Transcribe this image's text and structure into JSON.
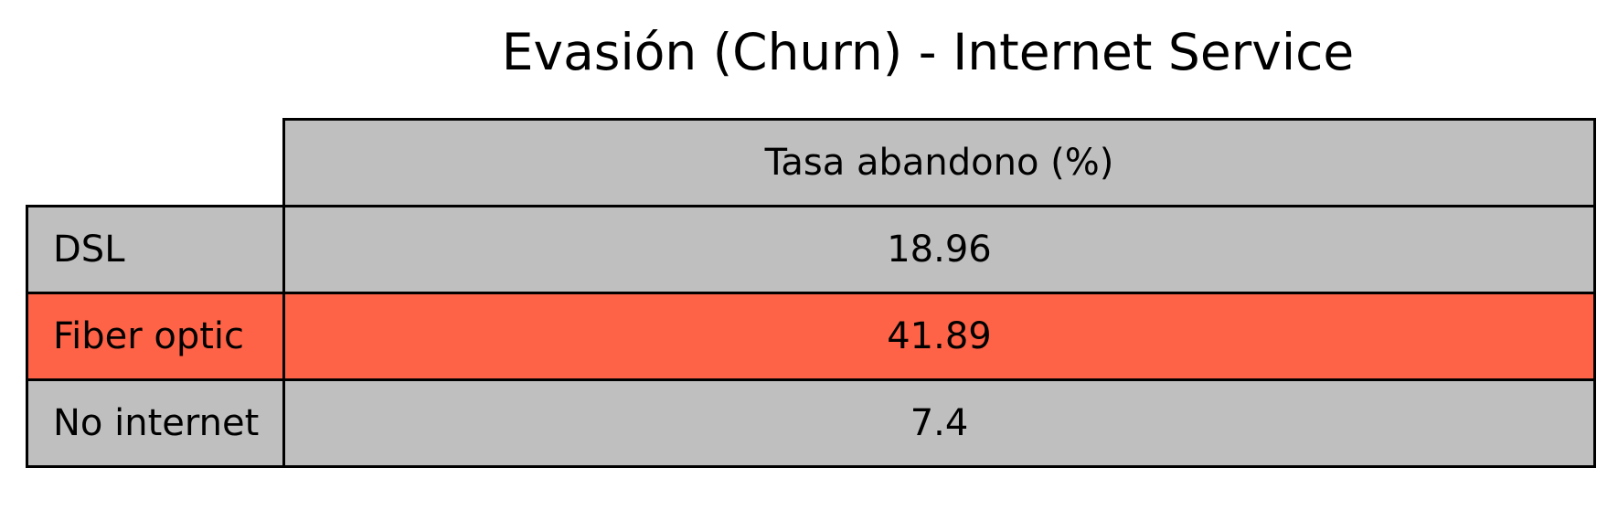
{
  "chart_data": {
    "type": "table",
    "title": "Evasión (Churn) - Internet Service",
    "column_header": "Tasa abandono (%)",
    "rows": [
      {
        "label": "DSL",
        "value": "18.96"
      },
      {
        "label": "Fiber optic",
        "value": "41.89"
      },
      {
        "label": "No internet",
        "value": "7.4"
      }
    ],
    "highlight_row": 1,
    "colors": {
      "cell": "#bfbfbf",
      "highlight": "#ff6347",
      "border": "#000000"
    }
  }
}
